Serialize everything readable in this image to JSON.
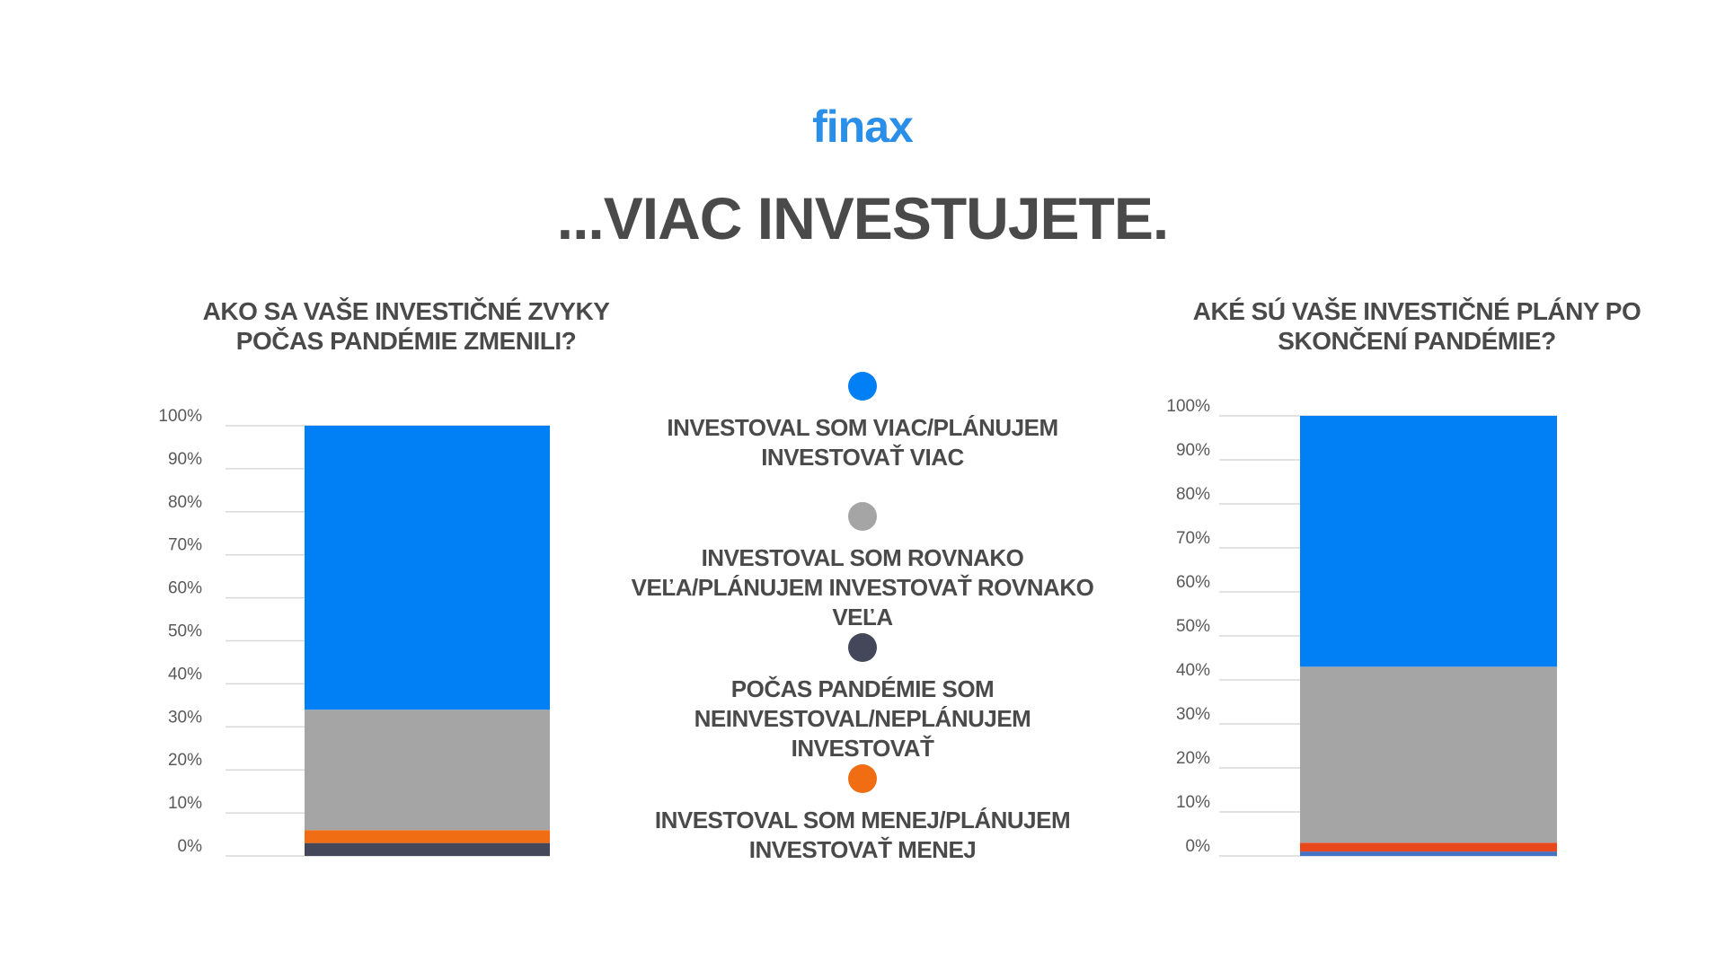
{
  "brand": "finax",
  "headline": "...VIAC INVESTUJETE.",
  "chart_data": [
    {
      "type": "stacked-bar",
      "title": "AKO SA VAŠE INVESTIČNÉ ZVYKY POČAS PANDÉMIE ZMENILI?",
      "ylim": [
        0,
        100
      ],
      "yticks": [
        {
          "value": 0,
          "label": "0%"
        },
        {
          "value": 10,
          "label": "10%"
        },
        {
          "value": 20,
          "label": "20%"
        },
        {
          "value": 30,
          "label": "30%"
        },
        {
          "value": 40,
          "label": "40%"
        },
        {
          "value": 50,
          "label": "50%"
        },
        {
          "value": 60,
          "label": "60%"
        },
        {
          "value": 70,
          "label": "70%"
        },
        {
          "value": 80,
          "label": "80%"
        },
        {
          "value": 90,
          "label": "90%"
        },
        {
          "value": 100,
          "label": "100%"
        }
      ],
      "grid": true,
      "series": [
        {
          "name": "INVESTOVAL SOM VIAC/PLÁNUJEM INVESTOVAŤ VIAC",
          "color": "#0080f4",
          "values": [
            66
          ]
        },
        {
          "name": "INVESTOVAL SOM ROVNAKO VEĽA/PLÁNUJEM INVESTOVAŤ ROVNAKO VEĽA",
          "color": "#a5a5a5",
          "values": [
            28
          ]
        },
        {
          "name": "POČAS PANDÉMIE SOM NEINVESTOVAL/NEPLÁNUJEM INVESTOVAŤ",
          "color": "#44475a",
          "values": [
            3
          ]
        },
        {
          "name": "INVESTOVAL SOM MENEJ/PLÁNUJEM INVESTOVAŤ MENEJ",
          "color": "#f06d14",
          "values": [
            3
          ]
        }
      ]
    },
    {
      "type": "stacked-bar",
      "title": "AKÉ SÚ VAŠE INVESTIČNÉ PLÁNY PO SKONČENÍ PANDÉMIE?",
      "ylim": [
        0,
        100
      ],
      "yticks": [
        {
          "value": 0,
          "label": "0%"
        },
        {
          "value": 10,
          "label": "10%"
        },
        {
          "value": 20,
          "label": "20%"
        },
        {
          "value": 30,
          "label": "30%"
        },
        {
          "value": 40,
          "label": "40%"
        },
        {
          "value": 50,
          "label": "50%"
        },
        {
          "value": 60,
          "label": "60%"
        },
        {
          "value": 70,
          "label": "70%"
        },
        {
          "value": 80,
          "label": "80%"
        },
        {
          "value": 90,
          "label": "90%"
        },
        {
          "value": 100,
          "label": "100%"
        }
      ],
      "grid": true,
      "series": [
        {
          "name": "INVESTOVAL SOM VIAC/PLÁNUJEM INVESTOVAŤ VIAC",
          "color": "#0080f4",
          "values": [
            57
          ]
        },
        {
          "name": "INVESTOVAL SOM ROVNAKO VEĽA/PLÁNUJEM INVESTOVAŤ ROVNAKO VEĽA",
          "color": "#a5a5a5",
          "values": [
            40
          ]
        },
        {
          "name": "POČAS PANDÉMIE SOM NEINVESTOVAL/NEPLÁNUJEM INVESTOVAŤ",
          "color": "#4472c4",
          "values": [
            1
          ]
        },
        {
          "name": "INVESTOVAL SOM MENEJ/PLÁNUJEM INVESTOVAŤ MENEJ",
          "color": "#e8481c",
          "values": [
            2
          ]
        }
      ]
    }
  ]
}
